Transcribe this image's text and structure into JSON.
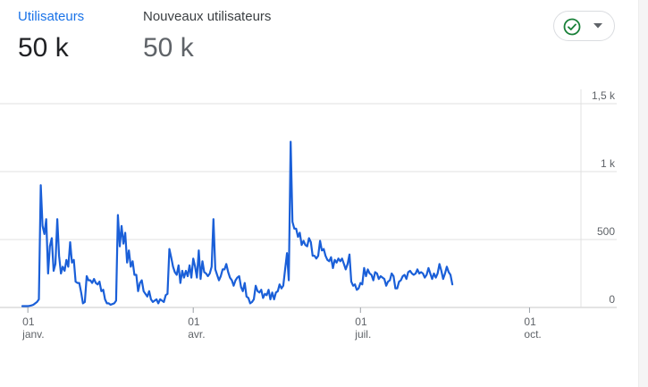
{
  "metrics": [
    {
      "label": "Utilisateurs",
      "value": "50 k",
      "active": true
    },
    {
      "label": "Nouveaux utilisateurs",
      "value": "50 k",
      "active": false
    }
  ],
  "status_icon": "check-circle-icon",
  "colors": {
    "accent": "#1a73e8",
    "line": "#1a5fd8",
    "status_green": "#188038",
    "grid": "#e0e0e0"
  },
  "chart_data": {
    "type": "line",
    "ylim": [
      0,
      1500
    ],
    "y_ticks": [
      {
        "value": 1500,
        "label": "1,5 k"
      },
      {
        "value": 1000,
        "label": "1 k"
      },
      {
        "value": 500,
        "label": "500"
      },
      {
        "value": 0,
        "label": "0"
      }
    ],
    "x_ticks": [
      {
        "day": 0,
        "day_label": "01",
        "month_label": "janv."
      },
      {
        "day": 90,
        "day_label": "01",
        "month_label": "avr."
      },
      {
        "day": 181,
        "day_label": "01",
        "month_label": "juil."
      },
      {
        "day": 273,
        "day_label": "01",
        "month_label": "oct."
      }
    ],
    "x_range_days": [
      -3,
      301
    ],
    "series": [
      {
        "values": [
          10,
          10,
          10,
          10,
          12,
          15,
          20,
          30,
          40,
          60,
          900,
          600,
          540,
          650,
          250,
          450,
          510,
          270,
          320,
          650,
          380,
          250,
          300,
          270,
          350,
          300,
          480,
          330,
          350,
          190,
          180,
          180,
          110,
          30,
          40,
          230,
          200,
          200,
          180,
          210,
          180,
          170,
          190,
          120,
          130,
          60,
          30,
          30,
          20,
          25,
          30,
          50,
          680,
          450,
          600,
          470,
          550,
          330,
          420,
          300,
          340,
          240,
          240,
          120,
          180,
          200,
          120,
          100,
          80,
          120,
          60,
          40,
          50,
          60,
          30,
          60,
          50,
          40,
          90,
          100,
          430,
          370,
          300,
          260,
          240,
          310,
          180,
          270,
          220,
          270,
          230,
          310,
          220,
          360,
          300,
          220,
          420,
          210,
          340,
          260,
          250,
          230,
          250,
          300,
          650,
          280,
          240,
          200,
          230,
          280,
          280,
          320,
          260,
          220,
          200,
          160,
          200,
          220,
          230,
          150,
          120,
          180,
          80,
          70,
          30,
          40,
          60,
          160,
          120,
          110,
          130,
          70,
          100,
          90,
          130,
          60,
          110,
          60,
          110,
          120,
          170,
          140,
          160,
          280,
          400,
          200,
          1220,
          630,
          580,
          580,
          520,
          550,
          460,
          490,
          460,
          450,
          510,
          480,
          380,
          380,
          360,
          380,
          490,
          420,
          430,
          380,
          350,
          340,
          370,
          290,
          350,
          330,
          360,
          340,
          360,
          320,
          280,
          320,
          390,
          190,
          160,
          170,
          130,
          140,
          180,
          170,
          290,
          230,
          280,
          250,
          240,
          200,
          260,
          250,
          210,
          230,
          220,
          210,
          160,
          190,
          200,
          250,
          230,
          140,
          140,
          190,
          200,
          230,
          240,
          210,
          260,
          270,
          250,
          240,
          250,
          280,
          250,
          260,
          250,
          220,
          240,
          290,
          250,
          210,
          250,
          220,
          250,
          320,
          270,
          210,
          250,
          300,
          260,
          240,
          170
        ]
      }
    ]
  }
}
